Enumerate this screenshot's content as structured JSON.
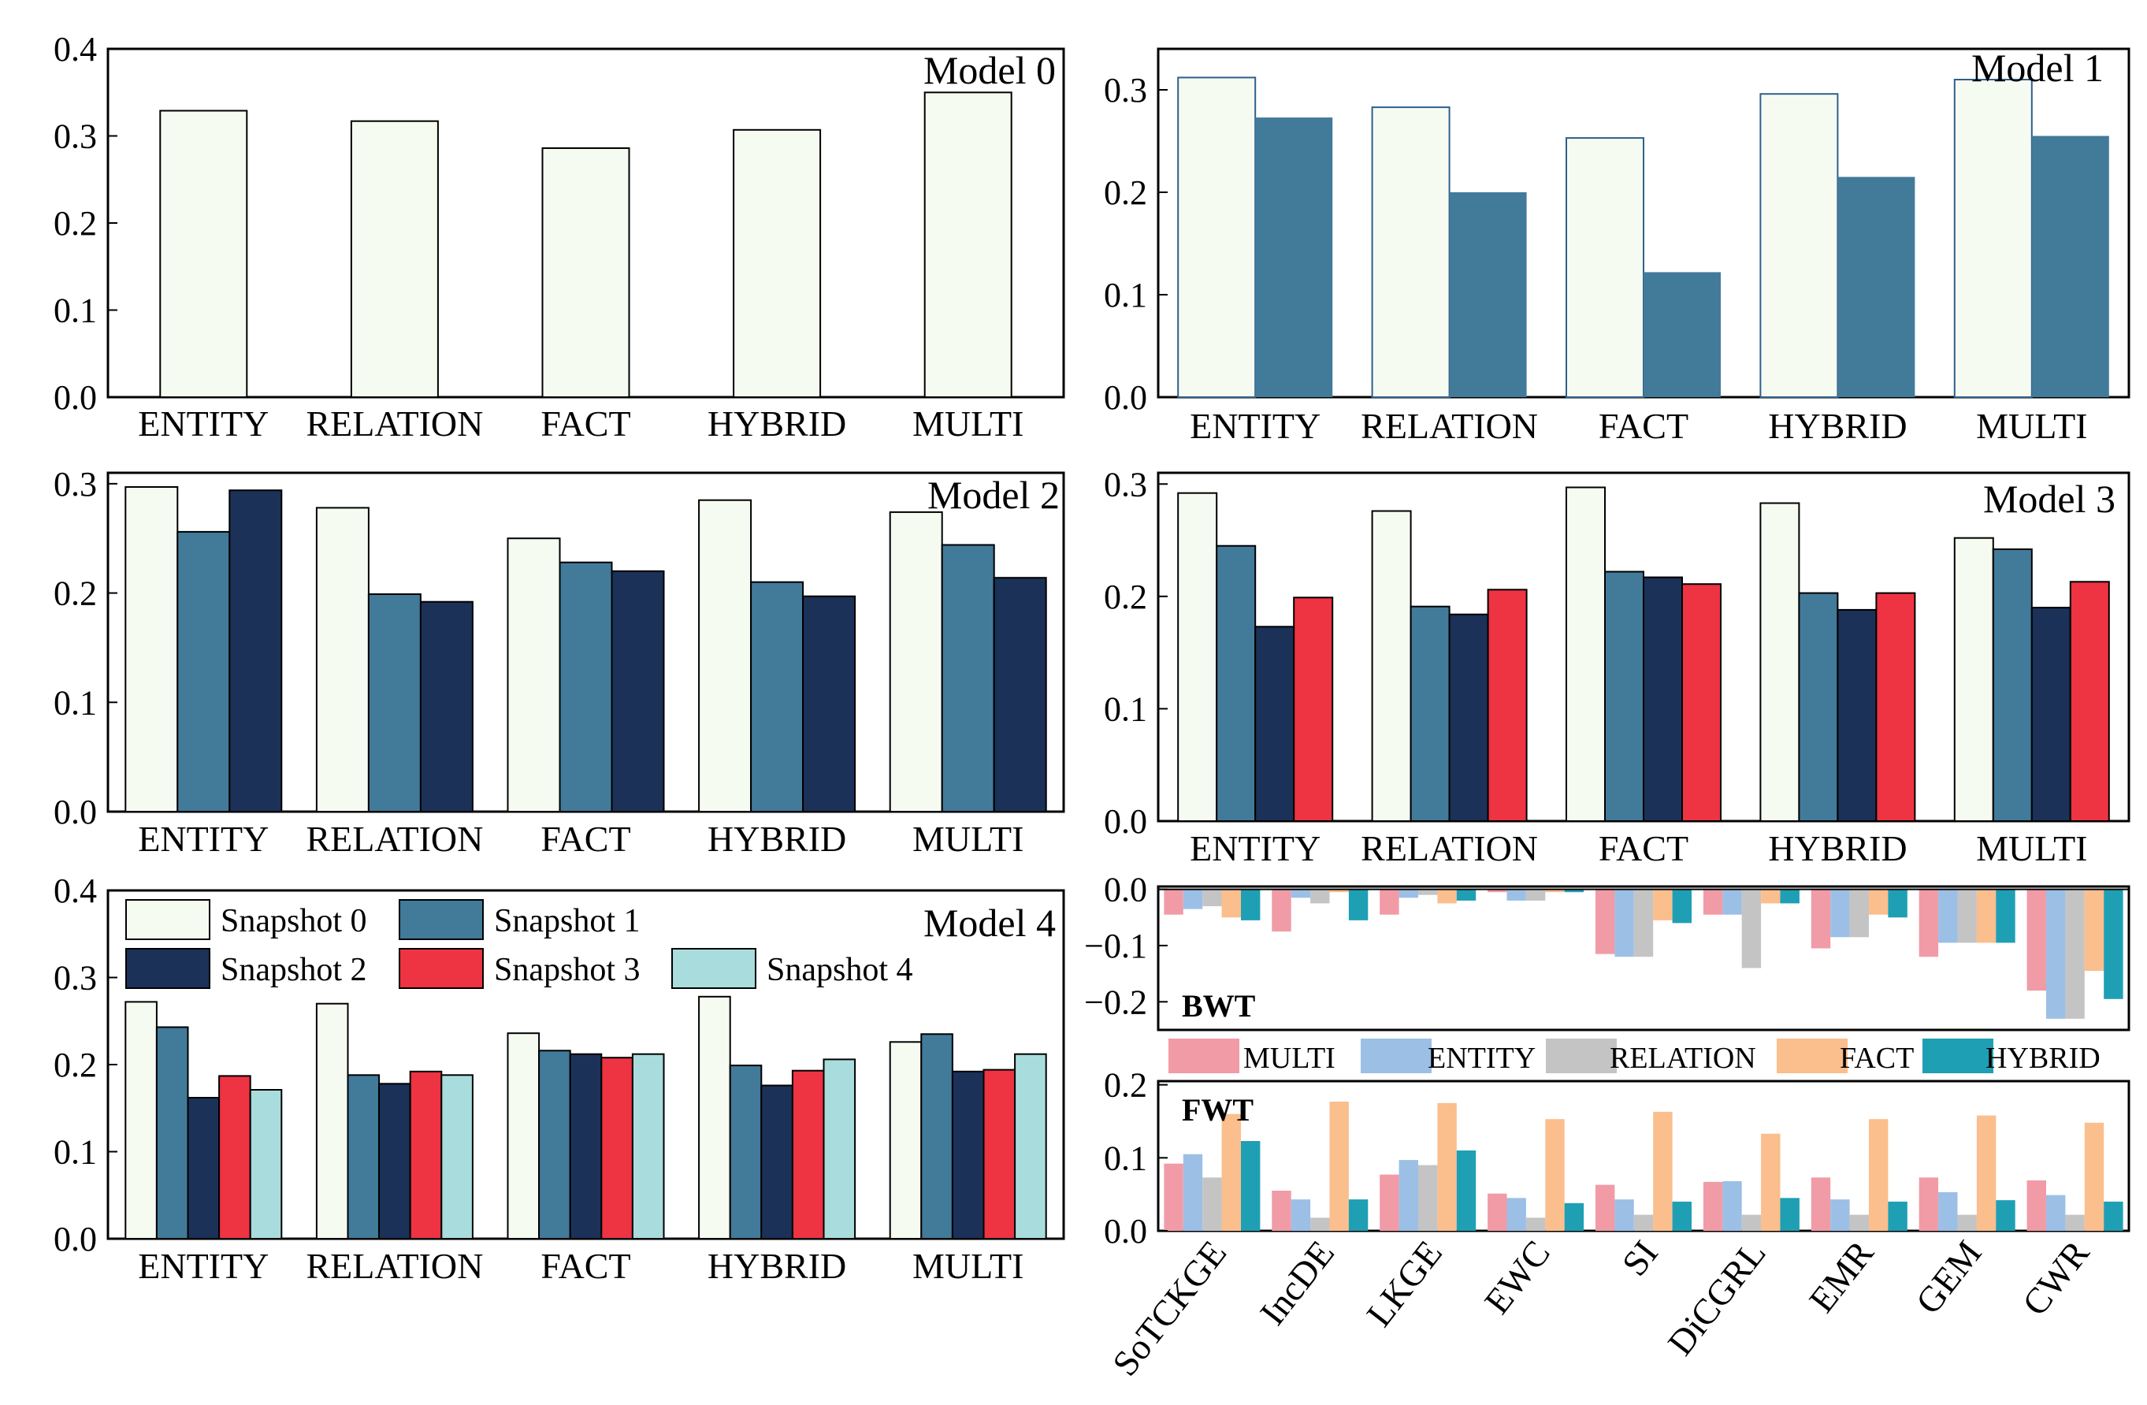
{
  "colors": {
    "snapshot_0": "#f6fbf2",
    "snapshot_1": "#427a9a",
    "snapshot_2": "#1c3158",
    "snapshot_3": "#ee3342",
    "snapshot_4": "#a9dcdc",
    "MULTI": "#f19ba6",
    "ENTITY": "#9cbfe6",
    "RELATION": "#c4c4c4",
    "FACT": "#fbbe8d",
    "HYBRID": "#1f9fb4"
  },
  "legend_snapshots": [
    "Snapshot 0",
    "Snapshot 1",
    "Snapshot 2",
    "Snapshot 3",
    "Snapshot 4"
  ],
  "chart_data": [
    {
      "type": "bar",
      "title": "Model 0",
      "categories": [
        "ENTITY",
        "RELATION",
        "FACT",
        "HYBRID",
        "MULTI"
      ],
      "series": [
        {
          "name": "Snapshot 0",
          "values": [
            0.329,
            0.317,
            0.286,
            0.307,
            0.35
          ]
        }
      ],
      "ylim": [
        0,
        0.4
      ],
      "yticks": [
        "0.0",
        "0.1",
        "0.2",
        "0.3",
        "0.4"
      ]
    },
    {
      "type": "bar",
      "title": "Model 1",
      "categories": [
        "ENTITY",
        "RELATION",
        "FACT",
        "HYBRID",
        "MULTI"
      ],
      "series": [
        {
          "name": "Snapshot 0",
          "values": [
            0.312,
            0.283,
            0.253,
            0.296,
            0.31
          ]
        },
        {
          "name": "Snapshot 1",
          "values": [
            0.273,
            0.2,
            0.122,
            0.215,
            0.255
          ]
        }
      ],
      "ylim": [
        0,
        0.34
      ],
      "yticks": [
        "0.0",
        "0.1",
        "0.2",
        "0.3"
      ]
    },
    {
      "type": "bar",
      "title": "Model 2",
      "categories": [
        "ENTITY",
        "RELATION",
        "FACT",
        "HYBRID",
        "MULTI"
      ],
      "series": [
        {
          "name": "Snapshot 0",
          "values": [
            0.297,
            0.278,
            0.25,
            0.285,
            0.274
          ]
        },
        {
          "name": "Snapshot 1",
          "values": [
            0.256,
            0.199,
            0.228,
            0.21,
            0.244
          ]
        },
        {
          "name": "Snapshot 2",
          "values": [
            0.294,
            0.192,
            0.22,
            0.197,
            0.214
          ]
        }
      ],
      "ylim": [
        0,
        0.31
      ],
      "yticks": [
        "0.0",
        "0.1",
        "0.2",
        "0.3"
      ]
    },
    {
      "type": "bar",
      "title": "Model 3",
      "categories": [
        "ENTITY",
        "RELATION",
        "FACT",
        "HYBRID",
        "MULTI"
      ],
      "series": [
        {
          "name": "Snapshot 0",
          "values": [
            0.292,
            0.276,
            0.297,
            0.283,
            0.252
          ]
        },
        {
          "name": "Snapshot 1",
          "values": [
            0.245,
            0.191,
            0.222,
            0.203,
            0.242
          ]
        },
        {
          "name": "Snapshot 2",
          "values": [
            0.173,
            0.184,
            0.217,
            0.188,
            0.19
          ]
        },
        {
          "name": "Snapshot 3",
          "values": [
            0.199,
            0.206,
            0.211,
            0.203,
            0.213
          ]
        }
      ],
      "ylim": [
        0,
        0.31
      ],
      "yticks": [
        "0.0",
        "0.1",
        "0.2",
        "0.3"
      ]
    },
    {
      "type": "bar",
      "title": "Model 4",
      "categories": [
        "ENTITY",
        "RELATION",
        "FACT",
        "HYBRID",
        "MULTI"
      ],
      "series": [
        {
          "name": "Snapshot 0",
          "values": [
            0.272,
            0.27,
            0.236,
            0.278,
            0.226
          ]
        },
        {
          "name": "Snapshot 1",
          "values": [
            0.243,
            0.188,
            0.216,
            0.199,
            0.235
          ]
        },
        {
          "name": "Snapshot 2",
          "values": [
            0.162,
            0.178,
            0.212,
            0.176,
            0.192
          ]
        },
        {
          "name": "Snapshot 3",
          "values": [
            0.187,
            0.192,
            0.208,
            0.193,
            0.194
          ]
        },
        {
          "name": "Snapshot 4",
          "values": [
            0.171,
            0.188,
            0.212,
            0.206,
            0.212
          ]
        }
      ],
      "ylim": [
        0,
        0.4
      ],
      "yticks": [
        "0.0",
        "0.1",
        "0.2",
        "0.3",
        "0.4"
      ]
    },
    {
      "type": "bar",
      "title": "BWT",
      "categories": [
        "SoTCKGE",
        "IncDE",
        "LKGE",
        "EWC",
        "SI",
        "DiCGRL",
        "EMR",
        "GEM",
        "CWR"
      ],
      "series": [
        {
          "name": "MULTI",
          "values": [
            -0.045,
            -0.075,
            -0.045,
            -0.005,
            -0.115,
            -0.045,
            -0.105,
            -0.12,
            -0.18
          ]
        },
        {
          "name": "ENTITY",
          "values": [
            -0.035,
            -0.015,
            -0.015,
            -0.02,
            -0.12,
            -0.045,
            -0.085,
            -0.095,
            -0.23
          ]
        },
        {
          "name": "RELATION",
          "values": [
            -0.03,
            -0.025,
            -0.01,
            -0.02,
            -0.12,
            -0.14,
            -0.085,
            -0.095,
            -0.23
          ]
        },
        {
          "name": "FACT",
          "values": [
            -0.05,
            -0.005,
            -0.025,
            -0.005,
            -0.055,
            -0.025,
            -0.045,
            -0.095,
            -0.145
          ]
        },
        {
          "name": "HYBRID",
          "values": [
            -0.055,
            -0.055,
            -0.02,
            -0.005,
            -0.06,
            -0.025,
            -0.05,
            -0.095,
            -0.195
          ]
        }
      ],
      "ylim": [
        -0.25,
        0.005
      ],
      "yticks": [
        "0.0",
        "−0.1",
        "−0.2"
      ]
    },
    {
      "type": "bar",
      "title": "FWT",
      "categories": [
        "SoTCKGE",
        "IncDE",
        "LKGE",
        "EWC",
        "SI",
        "DiCGRL",
        "EMR",
        "GEM",
        "CWR"
      ],
      "series": [
        {
          "name": "MULTI",
          "values": [
            0.092,
            0.055,
            0.077,
            0.051,
            0.063,
            0.067,
            0.073,
            0.073,
            0.069
          ]
        },
        {
          "name": "ENTITY",
          "values": [
            0.105,
            0.043,
            0.097,
            0.045,
            0.043,
            0.068,
            0.043,
            0.053,
            0.049
          ]
        },
        {
          "name": "RELATION",
          "values": [
            0.073,
            0.018,
            0.09,
            0.018,
            0.022,
            0.022,
            0.022,
            0.022,
            0.022
          ]
        },
        {
          "name": "FACT",
          "values": [
            0.16,
            0.177,
            0.175,
            0.153,
            0.163,
            0.133,
            0.153,
            0.158,
            0.148
          ]
        },
        {
          "name": "HYBRID",
          "values": [
            0.123,
            0.043,
            0.11,
            0.038,
            0.04,
            0.045,
            0.04,
            0.042,
            0.04
          ]
        }
      ],
      "ylim": [
        0,
        0.205
      ],
      "yticks": [
        "0.0",
        "0.1",
        "0.2"
      ]
    }
  ]
}
